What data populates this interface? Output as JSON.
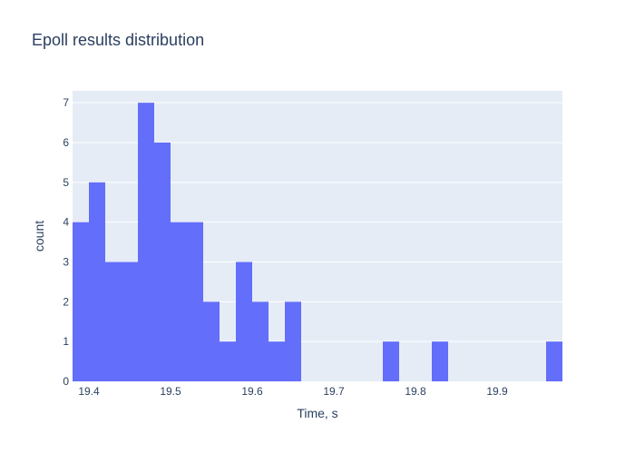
{
  "chart_data": {
    "type": "bar",
    "title": "Epoll results distribution",
    "xlabel": "Time, s",
    "ylabel": "count",
    "bin_width": 0.02,
    "bin_starts": [
      19.38,
      19.4,
      19.42,
      19.44,
      19.46,
      19.48,
      19.5,
      19.52,
      19.54,
      19.56,
      19.58,
      19.6,
      19.62,
      19.64,
      19.66,
      19.68,
      19.7,
      19.72,
      19.74,
      19.76,
      19.78,
      19.8,
      19.82,
      19.84,
      19.86,
      19.88,
      19.9,
      19.92,
      19.94,
      19.96
    ],
    "values": [
      4,
      5,
      3,
      3,
      7,
      6,
      4,
      4,
      2,
      1,
      3,
      2,
      1,
      2,
      0,
      0,
      0,
      0,
      0,
      1,
      0,
      0,
      1,
      0,
      0,
      0,
      0,
      0,
      0,
      1
    ],
    "xlim": [
      19.38,
      19.98
    ],
    "ylim": [
      0,
      7.3
    ],
    "xticks": [
      19.4,
      19.5,
      19.6,
      19.7,
      19.8,
      19.9
    ],
    "xtick_labels": [
      "19.4",
      "19.5",
      "19.6",
      "19.7",
      "19.8",
      "19.9"
    ],
    "yticks": [
      0,
      1,
      2,
      3,
      4,
      5,
      6,
      7
    ],
    "ytick_labels": [
      "0",
      "1",
      "2",
      "3",
      "4",
      "5",
      "6",
      "7"
    ],
    "grid": true,
    "colors": {
      "bar": "#636efa",
      "plot_background": "#e5ecf6",
      "grid": "#ffffff",
      "text": "#2a3f5f"
    }
  }
}
